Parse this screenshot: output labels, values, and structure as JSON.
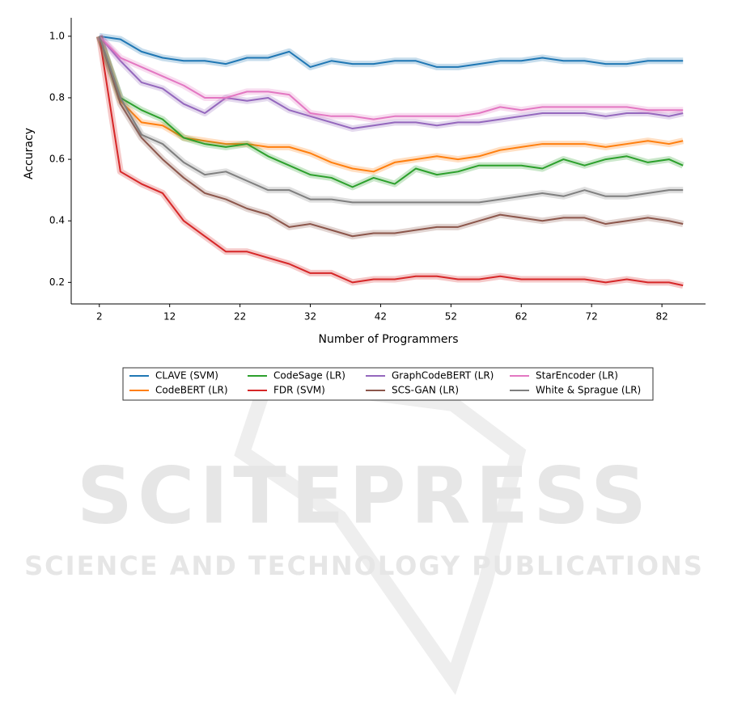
{
  "chart_data": {
    "type": "line",
    "xlabel": "Number of Programmers",
    "ylabel": "Accuracy",
    "x": [
      2,
      5,
      8,
      11,
      14,
      17,
      20,
      23,
      26,
      29,
      32,
      35,
      38,
      41,
      44,
      47,
      50,
      53,
      56,
      59,
      62,
      65,
      68,
      71,
      74,
      77,
      80,
      83,
      85
    ],
    "series": [
      {
        "name": "CLAVE (SVM)",
        "color": "#1f77b4",
        "values": [
          1.0,
          0.99,
          0.95,
          0.93,
          0.92,
          0.92,
          0.91,
          0.93,
          0.93,
          0.95,
          0.9,
          0.92,
          0.91,
          0.91,
          0.92,
          0.92,
          0.9,
          0.9,
          0.91,
          0.92,
          0.92,
          0.93,
          0.92,
          0.92,
          0.91,
          0.91,
          0.92,
          0.92,
          0.92
        ]
      },
      {
        "name": "CodeBERT (LR)",
        "color": "#ff7f0e",
        "values": [
          1.0,
          0.79,
          0.72,
          0.71,
          0.67,
          0.66,
          0.65,
          0.65,
          0.64,
          0.64,
          0.62,
          0.59,
          0.57,
          0.56,
          0.59,
          0.6,
          0.61,
          0.6,
          0.61,
          0.63,
          0.64,
          0.65,
          0.65,
          0.65,
          0.64,
          0.65,
          0.66,
          0.65,
          0.66
        ]
      },
      {
        "name": "CodeSage (LR)",
        "color": "#2ca02c",
        "values": [
          1.0,
          0.8,
          0.76,
          0.73,
          0.67,
          0.65,
          0.64,
          0.65,
          0.61,
          0.58,
          0.55,
          0.54,
          0.51,
          0.54,
          0.52,
          0.57,
          0.55,
          0.56,
          0.58,
          0.58,
          0.58,
          0.57,
          0.6,
          0.58,
          0.6,
          0.61,
          0.59,
          0.6,
          0.58
        ]
      },
      {
        "name": "FDR (SVM)",
        "color": "#d62728",
        "values": [
          1.0,
          0.56,
          0.52,
          0.49,
          0.4,
          0.35,
          0.3,
          0.3,
          0.28,
          0.26,
          0.23,
          0.23,
          0.2,
          0.21,
          0.21,
          0.22,
          0.22,
          0.21,
          0.21,
          0.22,
          0.21,
          0.21,
          0.21,
          0.21,
          0.2,
          0.21,
          0.2,
          0.2,
          0.19
        ]
      },
      {
        "name": "GraphCodeBERT (LR)",
        "color": "#9467bd",
        "values": [
          1.0,
          0.92,
          0.85,
          0.83,
          0.78,
          0.75,
          0.8,
          0.79,
          0.8,
          0.76,
          0.74,
          0.72,
          0.7,
          0.71,
          0.72,
          0.72,
          0.71,
          0.72,
          0.72,
          0.73,
          0.74,
          0.75,
          0.75,
          0.75,
          0.74,
          0.75,
          0.75,
          0.74,
          0.75
        ]
      },
      {
        "name": "SCS-GAN (LR)",
        "color": "#8c564b",
        "values": [
          1.0,
          0.78,
          0.67,
          0.6,
          0.54,
          0.49,
          0.47,
          0.44,
          0.42,
          0.38,
          0.39,
          0.37,
          0.35,
          0.36,
          0.36,
          0.37,
          0.38,
          0.38,
          0.4,
          0.42,
          0.41,
          0.4,
          0.41,
          0.41,
          0.39,
          0.4,
          0.41,
          0.4,
          0.39
        ]
      },
      {
        "name": "StarEncoder (LR)",
        "color": "#e377c2",
        "values": [
          1.0,
          0.93,
          0.9,
          0.87,
          0.84,
          0.8,
          0.8,
          0.82,
          0.82,
          0.81,
          0.75,
          0.74,
          0.74,
          0.73,
          0.74,
          0.74,
          0.74,
          0.74,
          0.75,
          0.77,
          0.76,
          0.77,
          0.77,
          0.77,
          0.77,
          0.77,
          0.76,
          0.76,
          0.76
        ]
      },
      {
        "name": "White & Sprague (LR)",
        "color": "#7f7f7f",
        "values": [
          1.0,
          0.8,
          0.68,
          0.65,
          0.59,
          0.55,
          0.56,
          0.53,
          0.5,
          0.5,
          0.47,
          0.47,
          0.46,
          0.46,
          0.46,
          0.46,
          0.46,
          0.46,
          0.46,
          0.47,
          0.48,
          0.49,
          0.48,
          0.5,
          0.48,
          0.48,
          0.49,
          0.5,
          0.5
        ]
      }
    ],
    "xlim": [
      -2,
      88.2
    ],
    "ylim": [
      0.13,
      1.06
    ],
    "xticks": [
      2,
      12,
      22,
      32,
      42,
      52,
      62,
      72,
      82
    ],
    "yticks": [
      0.2,
      0.4,
      0.6,
      0.8,
      {
        "value": 1,
        "label": "1.0"
      }
    ],
    "grid": false,
    "legend": "bottom"
  },
  "watermark": {
    "title": "SCITEPRESS",
    "subtitle": "SCIENCE AND TECHNOLOGY PUBLICATIONS"
  }
}
